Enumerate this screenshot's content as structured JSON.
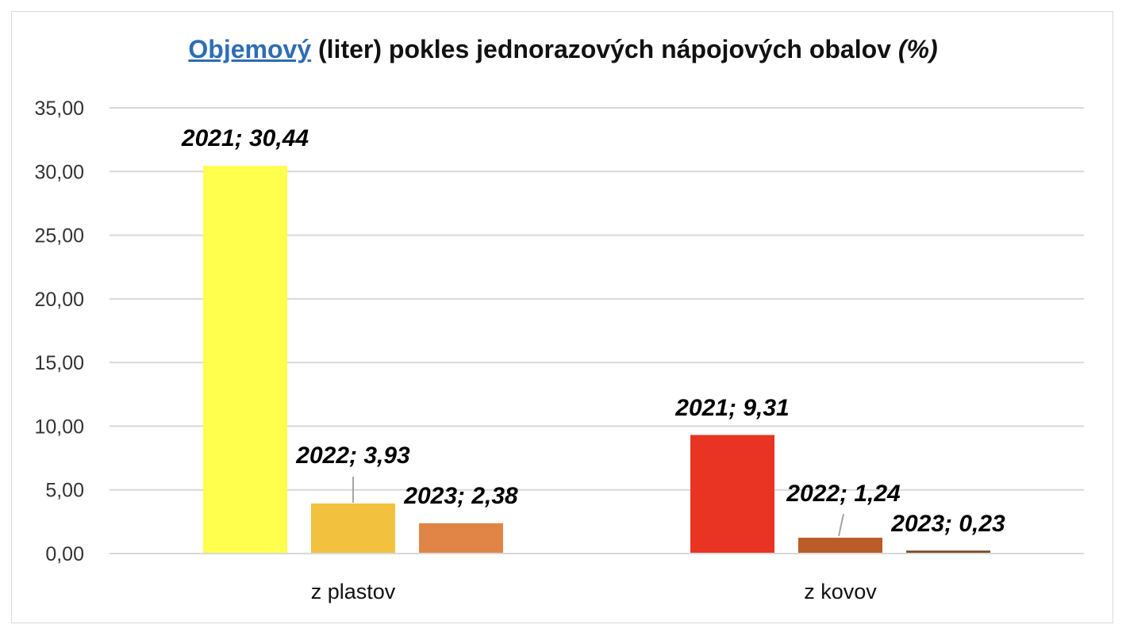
{
  "chart_data": {
    "type": "bar",
    "title_link": "Objemový",
    "title_main": " (liter) pokles jednorazových nápojových obalov ",
    "title_unit": "(%)",
    "categories": [
      "z plastov",
      "z kovov"
    ],
    "ylim": [
      0,
      35
    ],
    "yticks": [
      "0,00",
      "5,00",
      "10,00",
      "15,00",
      "20,00",
      "25,00",
      "30,00",
      "35,00"
    ],
    "ytick_values": [
      0,
      5,
      10,
      15,
      20,
      25,
      30,
      35
    ],
    "grid": true,
    "bars": [
      {
        "category": "z plastov",
        "year": "2021",
        "value": 30.44,
        "label": "2021; 30,44",
        "color": "#FFFF4D"
      },
      {
        "category": "z plastov",
        "year": "2022",
        "value": 3.93,
        "label": "2022; 3,93",
        "color": "#F2C13E"
      },
      {
        "category": "z plastov",
        "year": "2023",
        "value": 2.38,
        "label": "2023; 2,38",
        "color": "#E08545"
      },
      {
        "category": "z kovov",
        "year": "2021",
        "value": 9.31,
        "label": "2021; 9,31",
        "color": "#E93323"
      },
      {
        "category": "z kovov",
        "year": "2022",
        "value": 1.24,
        "label": "2022; 1,24",
        "color": "#B95C28"
      },
      {
        "category": "z kovov",
        "year": "2023",
        "value": 0.23,
        "label": "2023; 0,23",
        "color": "#7A4A1E"
      }
    ]
  }
}
